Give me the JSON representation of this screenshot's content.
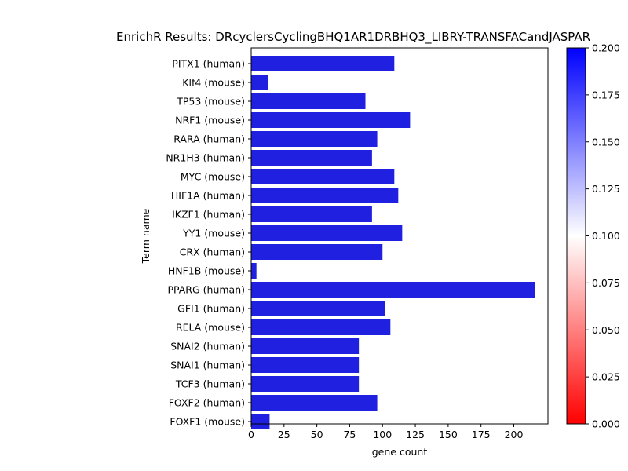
{
  "chart_data": {
    "type": "bar",
    "orientation": "horizontal",
    "title": "EnrichR Results: DRcyclersCyclingBHQ1AR1DRBHQ3_LIBRY-TRANSFACandJASPAR",
    "xlabel": "gene count",
    "ylabel": "Term name",
    "categories": [
      "PITX1 (human)",
      "Klf4 (mouse)",
      "TP53 (mouse)",
      "NRF1 (mouse)",
      "RARA (human)",
      "NR1H3 (human)",
      "MYC (mouse)",
      "HIF1A (human)",
      "IKZF1 (human)",
      "YY1 (mouse)",
      "CRX (human)",
      "HNF1B (mouse)",
      "PPARG (human)",
      "GFI1 (human)",
      "RELA (mouse)",
      "SNAI2 (human)",
      "SNAI1 (human)",
      "TCF3 (human)",
      "FOXF2 (human)",
      "FOXF1 (mouse)"
    ],
    "values": [
      109,
      13,
      87,
      121,
      96,
      92,
      109,
      112,
      92,
      115,
      100,
      4,
      216,
      102,
      106,
      82,
      82,
      82,
      96,
      14
    ],
    "xlim": [
      0,
      226
    ],
    "xticks": [
      "0",
      "25",
      "50",
      "75",
      "100",
      "125",
      "150",
      "175",
      "200"
    ],
    "bar_color": "#2020e0",
    "grid": false,
    "colorbar": {
      "colormap": "bwr_r",
      "range": [
        0,
        0.2
      ],
      "ticks": [
        "0.000",
        "0.025",
        "0.050",
        "0.075",
        "0.100",
        "0.125",
        "0.150",
        "0.175",
        "0.200"
      ],
      "color_low": "#ff0000",
      "color_mid": "#ffffff",
      "color_high": "#0000ff"
    }
  }
}
